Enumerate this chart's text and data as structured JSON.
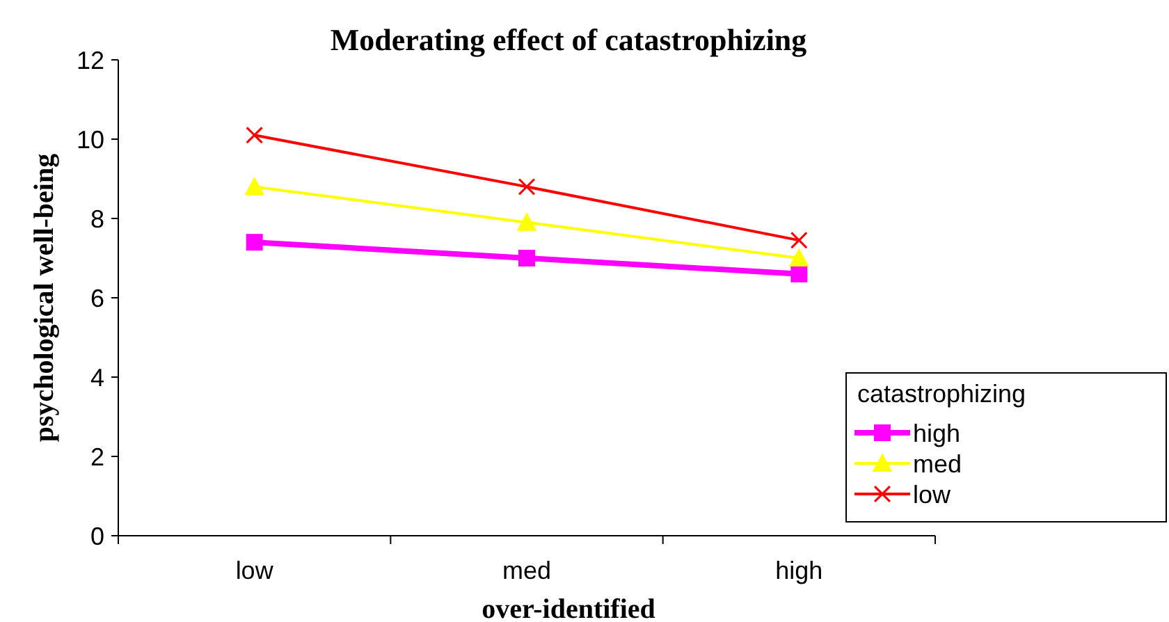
{
  "chart_data": {
    "type": "line",
    "title": "Moderating effect of catastrophizing",
    "xlabel": "over-identified",
    "ylabel": "psychological well-being",
    "categories": [
      "low",
      "med",
      "high"
    ],
    "series": [
      {
        "name": "high",
        "color": "#ff00ff",
        "values": [
          7.4,
          7.0,
          6.6
        ],
        "marker": "square"
      },
      {
        "name": "med",
        "color": "#ffff00",
        "values": [
          8.8,
          7.9,
          7.0
        ],
        "marker": "triangle"
      },
      {
        "name": "low",
        "color": "#ff0000",
        "values": [
          10.1,
          8.8,
          7.45
        ],
        "marker": "cross"
      }
    ],
    "ylim": [
      0,
      12
    ],
    "yticks": [
      0,
      2,
      4,
      6,
      8,
      10,
      12
    ],
    "grid": false,
    "legend": "right",
    "legend_title": "catastrophizing"
  }
}
